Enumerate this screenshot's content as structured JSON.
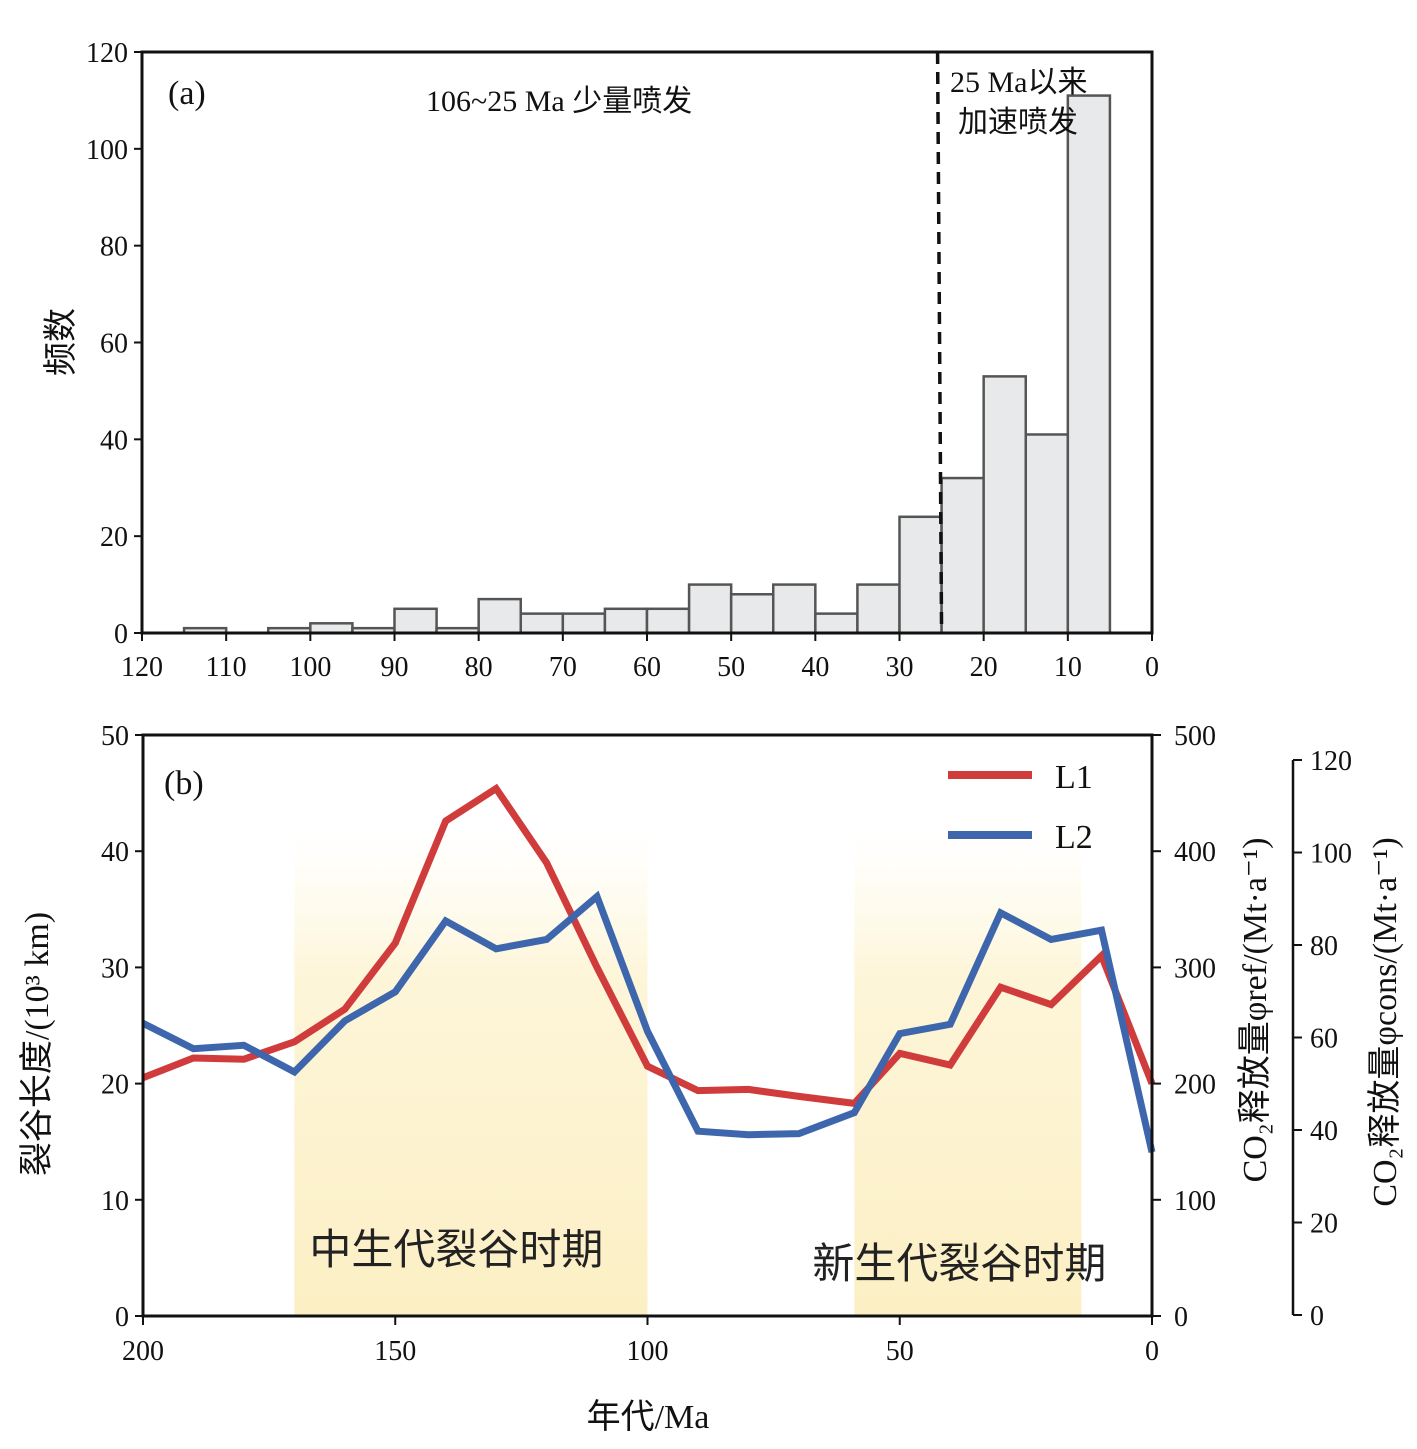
{
  "chart_data": [
    {
      "type": "bar",
      "panel_label": "(a)",
      "ylabel": "频数",
      "xlim": [
        120,
        0
      ],
      "ylim": [
        0,
        120
      ],
      "xticks": [
        "120",
        "110",
        "100",
        "90",
        "80",
        "70",
        "60",
        "50",
        "40",
        "30",
        "20",
        "10",
        "0"
      ],
      "yticks": [
        "0",
        "20",
        "40",
        "60",
        "80",
        "100",
        "120"
      ],
      "bin_width": 5,
      "bins": [
        {
          "start": 110,
          "value": 1
        },
        {
          "start": 105,
          "value": 0
        },
        {
          "start": 100,
          "value": 1
        },
        {
          "start": 95,
          "value": 2
        },
        {
          "start": 90,
          "value": 1
        },
        {
          "start": 85,
          "value": 5
        },
        {
          "start": 80,
          "value": 1
        },
        {
          "start": 75,
          "value": 7
        },
        {
          "start": 70,
          "value": 4
        },
        {
          "start": 65,
          "value": 4
        },
        {
          "start": 60,
          "value": 5
        },
        {
          "start": 55,
          "value": 5
        },
        {
          "start": 50,
          "value": 10
        },
        {
          "start": 45,
          "value": 8
        },
        {
          "start": 40,
          "value": 10
        },
        {
          "start": 35,
          "value": 4
        },
        {
          "start": 30,
          "value": 10
        },
        {
          "start": 25,
          "value": 24
        },
        {
          "start": 20,
          "value": 32
        },
        {
          "start": 15,
          "value": 53
        },
        {
          "start": 10,
          "value": 41
        },
        {
          "start": 5,
          "value": 111
        }
      ],
      "divider_x": 25,
      "annotations": {
        "left": "106~25 Ma 少量喷发",
        "right_line1": "25 Ma以来",
        "right_line2": "加速喷发"
      },
      "bar_fill": "#e8e9ea",
      "bar_stroke": "#555555"
    },
    {
      "type": "line",
      "panel_label": "(b)",
      "xlabel": "年代/Ma",
      "ylabel_left": "裂谷长度/(10³ km)",
      "ylabel_right1": "CO₂释放量φref/(Mt·a⁻¹)",
      "ylabel_right2": "CO₂释放量φcons/(Mt·a⁻¹)",
      "xlim": [
        200,
        0
      ],
      "ylim": [
        0,
        50
      ],
      "ylim_right1": [
        0,
        500
      ],
      "ylim_right2": [
        0,
        120
      ],
      "xticks": [
        "200",
        "150",
        "100",
        "50",
        "0"
      ],
      "yticks": [
        "0",
        "10",
        "20",
        "30",
        "40",
        "50"
      ],
      "yticks_right1": [
        "0",
        "100",
        "200",
        "300",
        "400",
        "500"
      ],
      "yticks_right2": [
        "0",
        "20",
        "40",
        "60",
        "80",
        "100",
        "120"
      ],
      "periods": [
        {
          "label": "中生代裂谷时期",
          "x_start": 170,
          "x_end": 100
        },
        {
          "label": "新生代裂谷时期",
          "x_start": 59,
          "x_end": 14
        }
      ],
      "series": [
        {
          "name": "L1",
          "color": "#d03b3b",
          "x": [
            200,
            190,
            180,
            170,
            160,
            150,
            140,
            130,
            120,
            110,
            100,
            90,
            80,
            70,
            59,
            50,
            40,
            30,
            20,
            10,
            0
          ],
          "values": [
            20.5,
            22.2,
            22.1,
            23.6,
            26.4,
            32.1,
            42.6,
            45.4,
            39.0,
            30.0,
            21.5,
            19.4,
            19.5,
            18.9,
            18.3,
            22.6,
            21.6,
            28.3,
            26.8,
            31.0,
            20.0
          ]
        },
        {
          "name": "L2",
          "color": "#3e66ad",
          "x": [
            200,
            190,
            180,
            170,
            160,
            150,
            140,
            130,
            120,
            110,
            100,
            90,
            80,
            70,
            59,
            50,
            40,
            30,
            20,
            10,
            0
          ],
          "values": [
            25.2,
            23.0,
            23.3,
            21.0,
            25.4,
            27.9,
            34.0,
            31.6,
            32.4,
            36.1,
            24.5,
            15.9,
            15.6,
            15.7,
            17.5,
            24.3,
            25.1,
            34.7,
            32.4,
            33.2,
            14.1
          ]
        }
      ]
    }
  ]
}
